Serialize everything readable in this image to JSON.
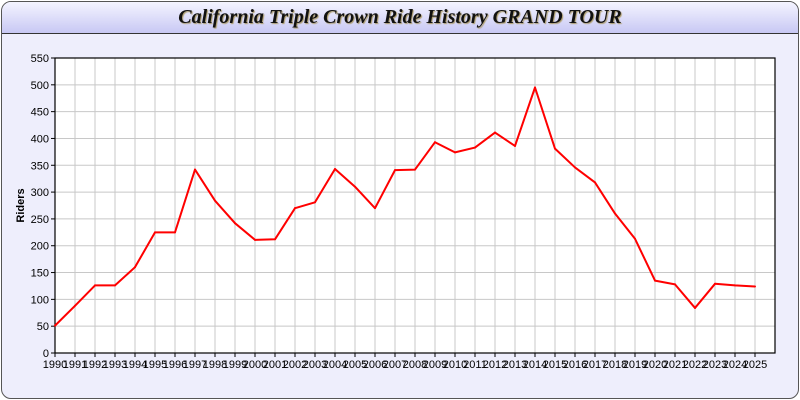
{
  "chart_data": {
    "type": "line",
    "title": "California Triple Crown Ride History GRAND TOUR",
    "xlabel": "",
    "ylabel": "Riders",
    "xlim": [
      1990,
      2026
    ],
    "ylim": [
      0,
      550
    ],
    "yticks": [
      0,
      50,
      100,
      150,
      200,
      250,
      300,
      350,
      400,
      450,
      500,
      550
    ],
    "grid": true,
    "series": [
      {
        "color": "#ff0000",
        "x": [
          1990,
          1991,
          1992,
          1993,
          1994,
          1995,
          1996,
          1997,
          1998,
          1999,
          2000,
          2001,
          2002,
          2003,
          2004,
          2005,
          2006,
          2007,
          2008,
          2009,
          2010,
          2011,
          2012,
          2013,
          2014,
          2015,
          2016,
          2017,
          2018,
          2019,
          2020,
          2021,
          2022,
          2023,
          2024,
          2025
        ],
        "values": [
          51,
          88,
          126,
          126,
          160,
          225,
          225,
          342,
          284,
          242,
          211,
          212,
          270,
          281,
          343,
          310,
          270,
          341,
          342,
          393,
          374,
          383,
          411,
          386,
          495,
          381,
          346,
          318,
          260,
          213,
          135,
          128,
          84,
          129,
          126,
          124
        ]
      }
    ]
  }
}
